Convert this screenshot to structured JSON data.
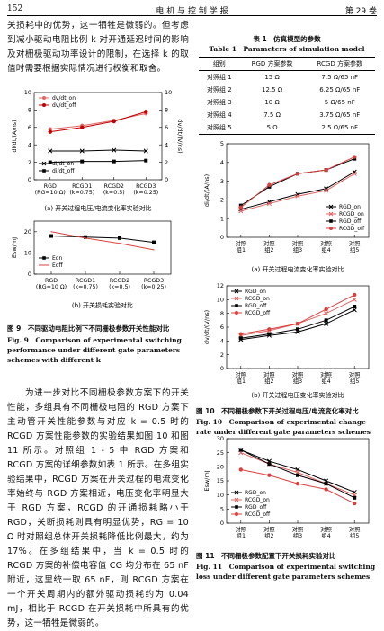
{
  "header": {
    "page": "152",
    "journal": "电 机 与 控 制 学 报",
    "volume": "第 29 卷"
  },
  "paragraphs": [
    "关损耗中的优势，这一牺牲是微弱的。但考虑到减小驱动电阻比例 k 对开通延迟时间的影响及对栅极驱动功率设计的限制，在选择 k 的取值时需要根据实际情况进行权衡和取舍。",
    "为进一步对比不同栅极参数方案下的开关性能，多组具有不同栅极电阻的 RGD 方案下主动管开关性能参数与对应 k = 0.5 时的 RCGD 方案性能参数的实验结果如图 10 和图 11 所示。对照组 1 - 5 中 RGD 方案和 RCGD 方案的详细参数如表 1 所示。在多组实验结果中，RCGD 方案在开关过程的电流变化率始终与 RGD 方案相近，电压变化率明显大于 RGD 方案，RCGD 的开通损耗略小于 RGD，关断损耗则具有明显优势，RG = 10 Ω 时对照组总体开关损耗降低比例最大，约为 17%。在多组结果中，当 k = 0.5 时的 RCGD 方案的补偿电容值 CG 均分布在 65 nF 附近，这里统一取 65 nF，则 RCGD 方案在一个开关周期内的额外驱动损耗约为 0.04 mJ，相比于 RCGD 在开关损耗中所具有的优势，这一牺牲是微弱的。"
  ],
  "table": {
    "title_cn": "表 1　仿真模型的参数",
    "title_en": "Table 1　Parameters of simulation model",
    "header": [
      "组别",
      "RGD 方案参数",
      "RCGD 方案参数"
    ],
    "rows": [
      [
        "对照组 1",
        "15 Ω",
        "7.5 Ω/65 nF"
      ],
      [
        "对照组 2",
        "12.5 Ω",
        "6.25 Ω/65 nF"
      ],
      [
        "对照组 3",
        "10 Ω",
        "5 Ω/65 nF"
      ],
      [
        "对照组 4",
        "7.5 Ω",
        "3.75 Ω/65 nF"
      ],
      [
        "对照组 5",
        "5 Ω",
        "2.5 Ω/65 nF"
      ]
    ]
  },
  "figures": [
    {
      "caption_cn": "图 9　不同驱动电阻比例下不同栅极参数开关性能对比",
      "caption_en": "Fig. 9　Comparison of experimental switching performance under different gate parameters schemes with different k"
    },
    {
      "caption_cn": "图 10　不同栅极参数下开关过程电压/电流变化率对比",
      "caption_en": "Fig. 10　Comparison of experimental change rate under different gate parameters schemes"
    },
    {
      "caption_cn": "图 11　不同栅极参数配置下开关损耗实验对比",
      "caption_en": "Fig. 11　Comparison of experimental switching loss under different gate parameters schemes"
    }
  ],
  "chart_data": [
    {
      "type": "line",
      "caption": "(a) 开关过程电压/电流变化率实验对比",
      "categories": [
        "RGD\n(RG=10 Ω)",
        "RCGD1\n(k=0.75)",
        "RCGD2\n(k=0.5)",
        "RCGD3\n(k=0.25)"
      ],
      "y_label": "di/dt/(A/ns)",
      "y2_label": "dv/dt/(V/ns)",
      "ylim": [
        0,
        10
      ],
      "yticks": [
        0,
        2,
        4,
        6,
        8,
        10
      ],
      "y2lim": [
        0,
        10
      ],
      "y2ticks": [
        0,
        2,
        4,
        6,
        8,
        10
      ],
      "series": [
        {
          "name": "dv/dt_on",
          "color": "#e06666",
          "marker": "circle",
          "axis": "y2",
          "legend": "upper left",
          "values": [
            5.8,
            6.2,
            6.8,
            7.6
          ]
        },
        {
          "name": "dv/dt_off",
          "color": "#c00000",
          "marker": "circle",
          "axis": "y2",
          "legend": "upper left",
          "values": [
            5.5,
            6.0,
            6.7,
            7.8
          ]
        },
        {
          "name": "di/dt_on",
          "color": "#000000",
          "marker": "x",
          "legend": "lower left",
          "values": [
            3.3,
            3.3,
            3.4,
            3.3
          ]
        },
        {
          "name": "di/dt_off",
          "color": "#000000",
          "marker": "square",
          "legend": "lower left",
          "values": [
            2.0,
            2.1,
            2.1,
            2.2
          ]
        }
      ]
    },
    {
      "type": "line",
      "caption": "(b) 开关损耗实验对比",
      "categories": [
        "RGD\n(RG=10 Ω)",
        "RCGD1\n(k=0.75)",
        "RCGD2\n(k=0.5)",
        "RCGD3\n(k=0.25)"
      ],
      "y_label": "Esw/mJ",
      "ylim": [
        0,
        25
      ],
      "yticks": [
        0,
        10,
        20
      ],
      "legend": "lower left",
      "series": [
        {
          "name": "Eon",
          "color": "#000000",
          "marker": "square",
          "values": [
            18,
            17.5,
            17,
            15
          ]
        },
        {
          "name": "Eoff",
          "color": "#d94040",
          "marker": "none",
          "values": [
            20,
            17,
            14.5,
            11.5
          ]
        }
      ]
    },
    {
      "type": "line",
      "caption": "(a) 开关过程电流变化率实验对比",
      "categories": [
        "对照\n组1",
        "对照\n组2",
        "对照\n组3",
        "对照\n组4",
        "对照\n组5"
      ],
      "y_label": "di/dt/(A/ns)",
      "ylim": [
        0,
        5
      ],
      "yticks": [
        0,
        1,
        2,
        3,
        4,
        5
      ],
      "legend": "lower right",
      "series": [
        {
          "name": "RGD_on",
          "color": "#000000",
          "marker": "x",
          "values": [
            1.5,
            1.9,
            2.3,
            2.6,
            3.5
          ]
        },
        {
          "name": "RCGD_on",
          "color": "#e06666",
          "marker": "x",
          "values": [
            1.4,
            1.8,
            2.2,
            2.5,
            3.4
          ]
        },
        {
          "name": "RGD_off",
          "color": "#000000",
          "marker": "square",
          "values": [
            1.7,
            2.7,
            3.4,
            3.6,
            4.2
          ]
        },
        {
          "name": "RCGD_off",
          "color": "#d94040",
          "marker": "circle",
          "values": [
            1.6,
            2.8,
            3.4,
            3.6,
            4.3
          ]
        }
      ]
    },
    {
      "type": "line",
      "caption": "(b) 开关过程电压变化率实验对比",
      "categories": [
        "对照\n组1",
        "对照\n组2",
        "对照\n组3",
        "对照\n组4",
        "对照\n组5"
      ],
      "y_label": "dv/dt/(V/ns)",
      "ylim": [
        0,
        12
      ],
      "yticks": [
        0,
        2,
        4,
        6,
        8,
        10,
        12
      ],
      "legend": "upper left",
      "series": [
        {
          "name": "RGD_on",
          "color": "#000000",
          "marker": "x",
          "values": [
            4.2,
            4.8,
            5.3,
            6.5,
            8.5
          ]
        },
        {
          "name": "RCGD_on",
          "color": "#e06666",
          "marker": "x",
          "values": [
            4.8,
            5.5,
            6.5,
            8.0,
            10.0
          ]
        },
        {
          "name": "RGD_off",
          "color": "#000000",
          "marker": "square",
          "values": [
            4.4,
            5.0,
            5.7,
            7.0,
            9.0
          ]
        },
        {
          "name": "RCGD_off",
          "color": "#d94040",
          "marker": "circle",
          "values": [
            5.0,
            5.7,
            6.5,
            8.6,
            10.7
          ]
        }
      ]
    },
    {
      "type": "line",
      "categories": [
        "对照\n组1",
        "对照\n组2",
        "对照\n组3",
        "对照\n组4",
        "对照\n组5"
      ],
      "y_label": "Esw/mJ",
      "ylim": [
        0,
        30
      ],
      "yticks": [
        0,
        5,
        10,
        15,
        20,
        25,
        30
      ],
      "legend": "lower left",
      "series": [
        {
          "name": "RGD_on",
          "color": "#000000",
          "marker": "x",
          "values": [
            26,
            22,
            19,
            15,
            11
          ]
        },
        {
          "name": "RCGD_on",
          "color": "#e06666",
          "marker": "x",
          "values": [
            25,
            21,
            18,
            14,
            10
          ]
        },
        {
          "name": "RGD_off",
          "color": "#000000",
          "marker": "square",
          "values": [
            26,
            21,
            17,
            14,
            9
          ]
        },
        {
          "name": "RCGD_off",
          "color": "#d94040",
          "marker": "circle",
          "values": [
            19,
            17,
            14,
            12,
            7
          ]
        }
      ]
    }
  ]
}
